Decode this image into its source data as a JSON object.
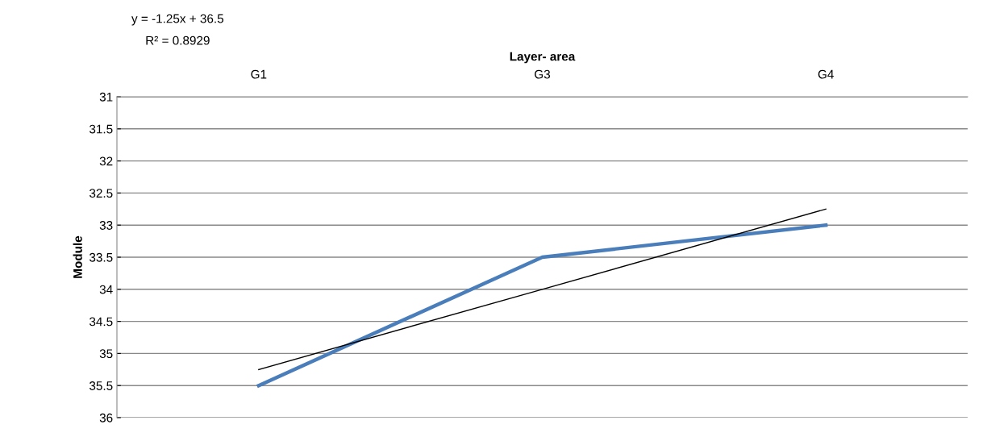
{
  "chart_data": {
    "type": "line",
    "xlabel": "Layer- area",
    "ylabel": "Module",
    "categories": [
      "G1",
      "G3",
      "G4"
    ],
    "series": [
      {
        "color": "#4a7ebb",
        "values": [
          35.5,
          33.5,
          33
        ]
      },
      {
        "color": "#000000",
        "values": [
          35.25,
          34,
          32.75
        ]
      }
    ],
    "ylim": [
      36,
      31
    ],
    "yticks": [
      31,
      31.5,
      32,
      32.5,
      33,
      33.5,
      34,
      34.5,
      35,
      35.5,
      36
    ],
    "grid": "y",
    "marker": "none",
    "line_style": "solid",
    "annotations": [
      "y = -1.25x + 36.5",
      "R² = 0.8929"
    ]
  }
}
